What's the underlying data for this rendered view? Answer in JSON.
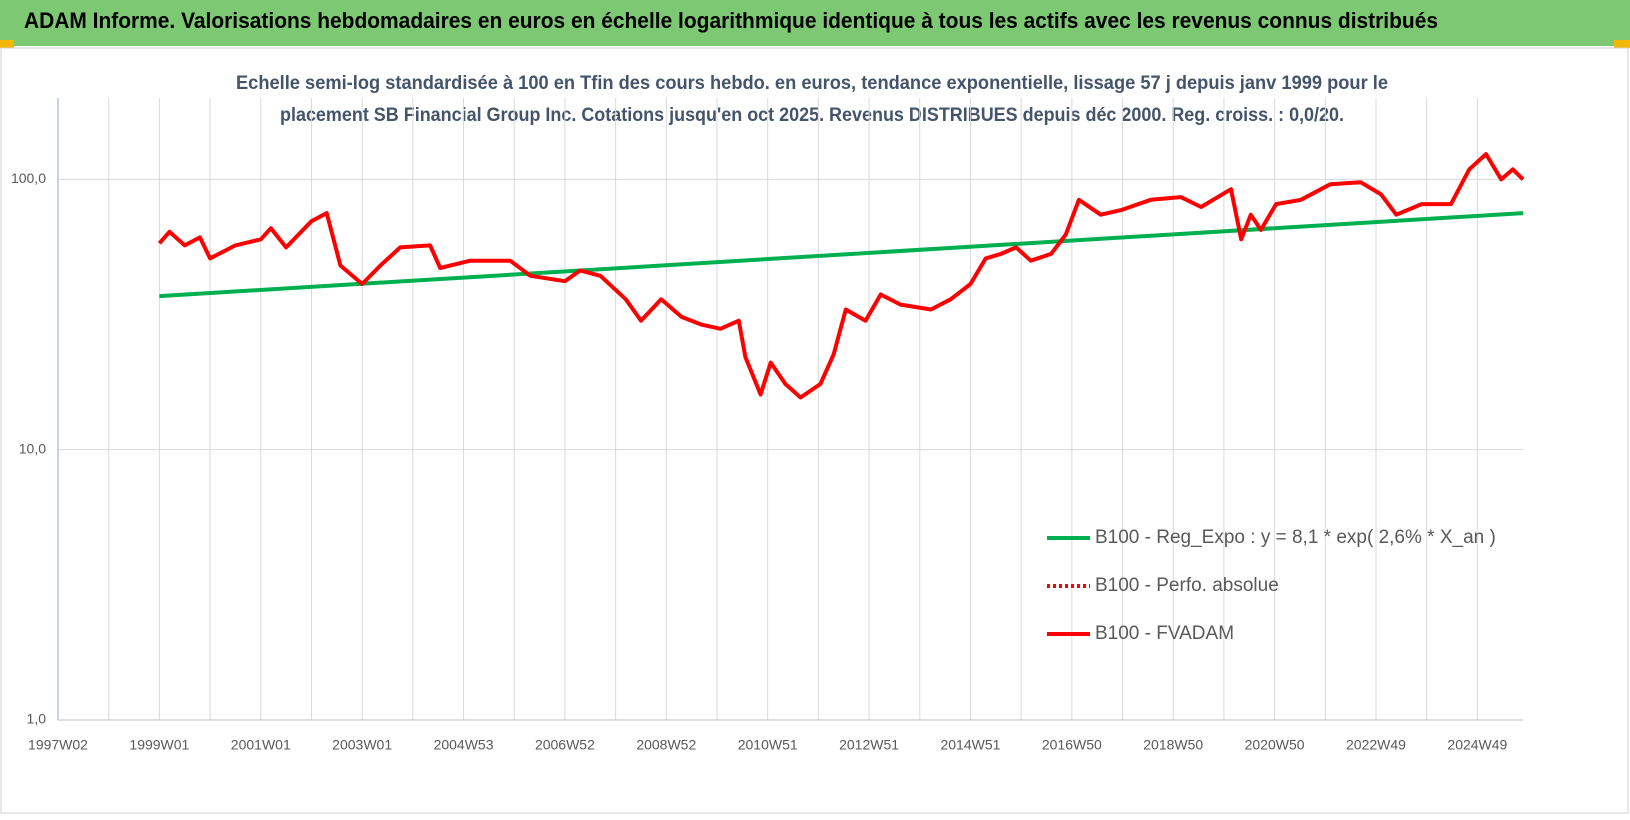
{
  "header": {
    "title": "ADAM Informe. Valorisations hebdomadaires en euros en échelle logarithmique identique à tous les actifs avec les revenus connus distribués"
  },
  "chart_data": {
    "type": "line",
    "title_lines": [
      "Echelle semi-log standardisée à 100 en Tfin des cours hebdo. en euros, tendance exponentielle, lissage 57 j depuis janv 1999 pour le",
      "placement SB Financial Group Inc. Cotations jusqu'en oct 2025. Revenus DISTRIBUES depuis déc 2000. Reg. croiss. : 0,0/20."
    ],
    "log_scale": true,
    "ylim": [
      1,
      200
    ],
    "yticks": [
      {
        "value": 1,
        "label": "1,0"
      },
      {
        "value": 10,
        "label": "10,0"
      },
      {
        "value": 100,
        "label": "100,0"
      }
    ],
    "xlim": [
      1997.0,
      2025.9
    ],
    "xticks": [
      {
        "value": 1997.0,
        "label": "1997W02"
      },
      {
        "value": 1999.0,
        "label": "1999W01"
      },
      {
        "value": 2001.0,
        "label": "2001W01"
      },
      {
        "value": 2003.0,
        "label": "2003W01"
      },
      {
        "value": 2005.0,
        "label": "2004W53"
      },
      {
        "value": 2007.0,
        "label": "2006W52"
      },
      {
        "value": 2009.0,
        "label": "2008W52"
      },
      {
        "value": 2011.0,
        "label": "2010W51"
      },
      {
        "value": 2013.0,
        "label": "2012W51"
      },
      {
        "value": 2015.0,
        "label": "2014W51"
      },
      {
        "value": 2017.0,
        "label": "2016W50"
      },
      {
        "value": 2019.0,
        "label": "2018W50"
      },
      {
        "value": 2021.0,
        "label": "2020W50"
      },
      {
        "value": 2023.0,
        "label": "2022W49"
      },
      {
        "value": 2025.0,
        "label": "2024W49"
      }
    ],
    "xgrid": [
      1998,
      2000,
      2002,
      2004,
      2006,
      2008,
      2010,
      2012,
      2014,
      2016,
      2018,
      2020,
      2022,
      2024
    ],
    "grid": true,
    "series": [
      {
        "name": "B100 - Reg_Expo : y = 8,1 * exp( 2,6% *  X_an )",
        "color": "#00b050",
        "x": [
          1999.0,
          2025.9
        ],
        "values": [
          37,
          75
        ]
      },
      {
        "name": "B100 - Perfo. absolue",
        "color": "#ff0000",
        "dash": true
      },
      {
        "name": "B100 - FVADAM",
        "color": "#ff0000",
        "x": [
          1999.0,
          1999.2,
          1999.5,
          1999.8,
          2000.0,
          2000.5,
          2001.0,
          2001.2,
          2001.5,
          2002.0,
          2002.3,
          2002.57,
          2003.0,
          2003.36,
          2003.75,
          2004.34,
          2004.54,
          2005.13,
          2005.92,
          2006.32,
          2007.0,
          2007.3,
          2007.7,
          2008.2,
          2008.5,
          2008.9,
          2009.3,
          2009.7,
          2010.07,
          2010.43,
          2010.56,
          2010.86,
          2011.06,
          2011.35,
          2011.65,
          2012.04,
          2012.3,
          2012.54,
          2012.93,
          2013.23,
          2013.62,
          2014.22,
          2014.61,
          2015.0,
          2015.3,
          2015.6,
          2015.9,
          2016.19,
          2016.59,
          2016.88,
          2017.14,
          2017.57,
          2017.97,
          2018.56,
          2019.15,
          2019.55,
          2020.14,
          2020.34,
          2020.53,
          2020.73,
          2021.03,
          2021.52,
          2022.1,
          2022.7,
          2023.1,
          2023.4,
          2023.9,
          2024.48,
          2024.84,
          2025.17,
          2025.47,
          2025.7,
          2025.9
        ],
        "values": [
          58,
          64,
          57,
          61,
          51,
          57,
          60,
          66,
          56,
          70,
          75,
          48,
          41,
          48,
          56,
          57,
          47,
          50,
          50,
          44,
          42,
          46,
          44,
          36,
          30,
          36,
          31,
          29,
          28,
          30,
          22,
          16,
          21,
          17.5,
          15.6,
          17.5,
          22.5,
          33,
          30,
          37.5,
          34.4,
          33,
          36,
          41,
          51,
          53,
          56,
          50,
          53,
          62.5,
          84,
          74,
          77,
          84,
          86,
          79,
          92,
          60,
          74,
          65,
          81,
          84,
          96,
          97.5,
          88,
          74,
          81,
          81,
          109,
          124,
          100,
          109,
          100
        ]
      }
    ]
  }
}
